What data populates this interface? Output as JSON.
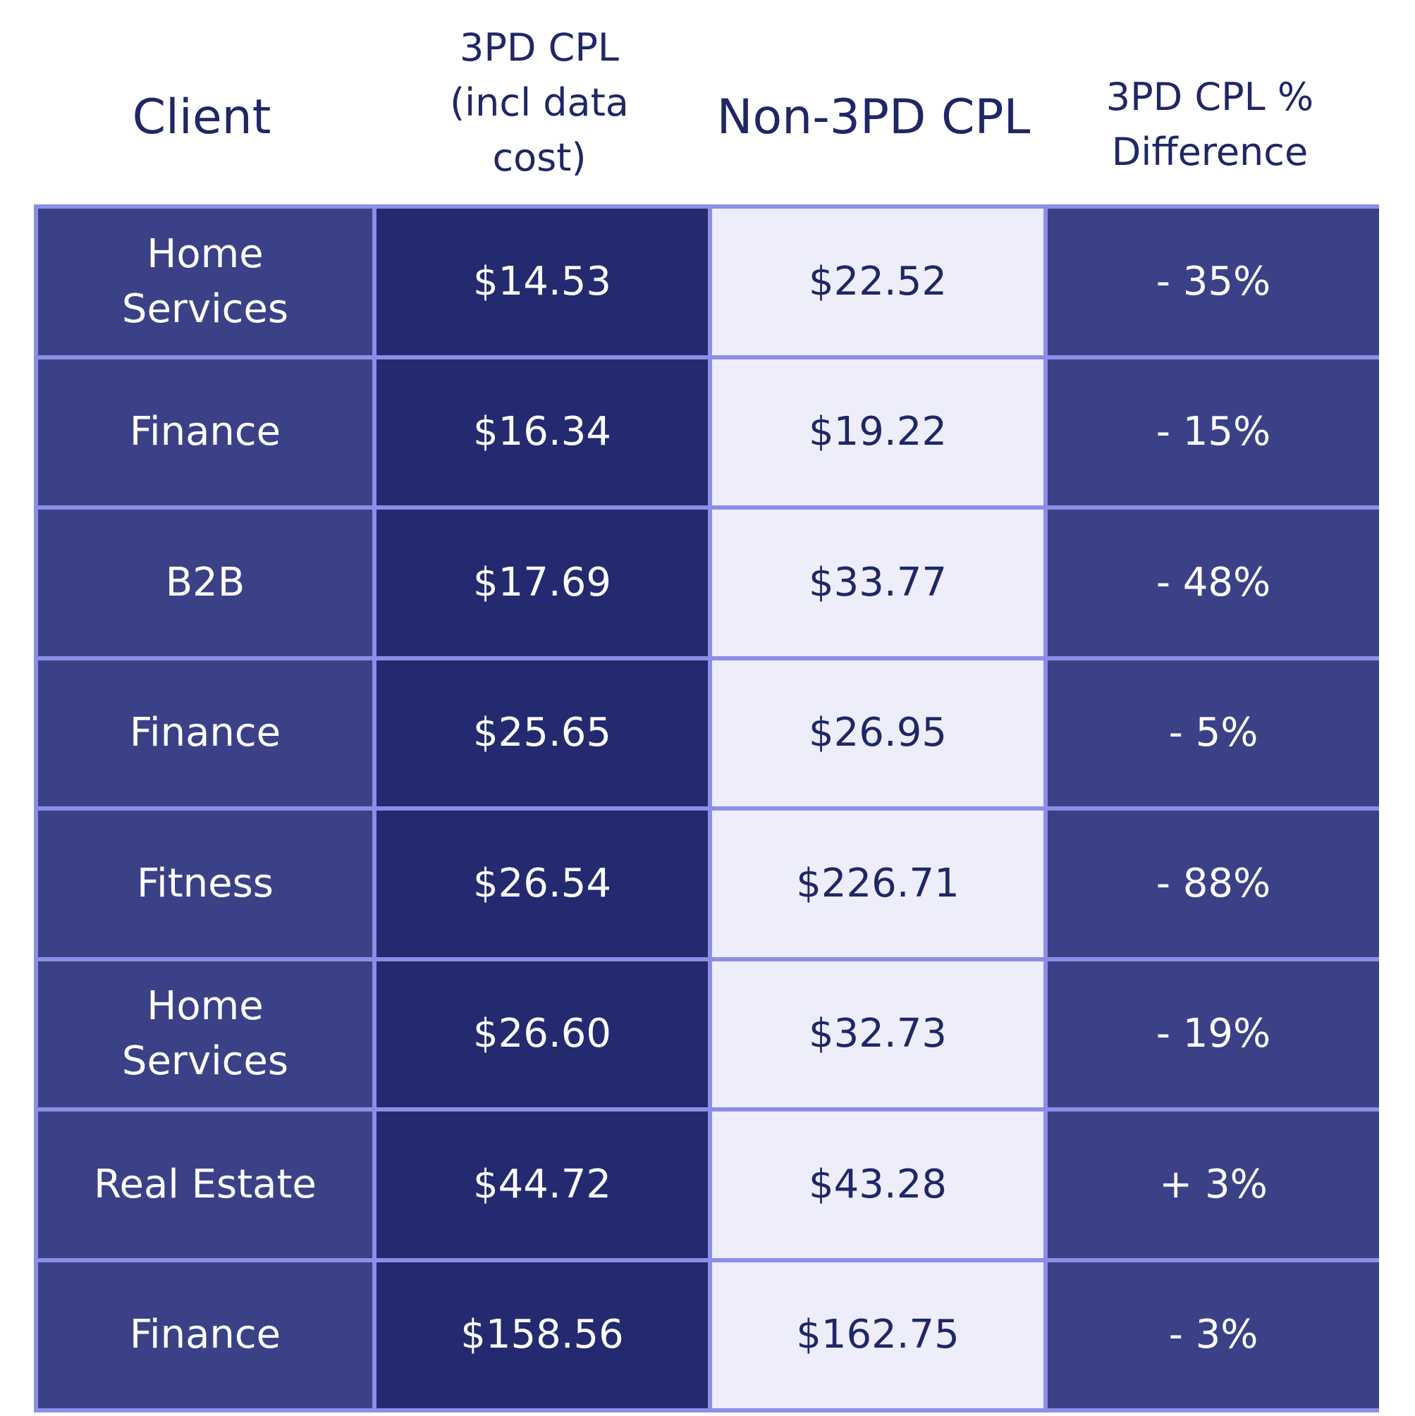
{
  "chart_data": {
    "type": "table",
    "columns": [
      "Client",
      "3PD CPL\n(incl data\ncost)",
      "Non-3PD CPL",
      "3PD CPL %\nDifference"
    ],
    "rows": [
      [
        "Home\nServices",
        "$14.53",
        "$22.52",
        "- 35%"
      ],
      [
        "Finance",
        "$16.34",
        "$19.22",
        "- 15%"
      ],
      [
        "B2B",
        "$17.69",
        "$33.77",
        "- 48%"
      ],
      [
        "Finance",
        "$25.65",
        "$26.95",
        "- 5%"
      ],
      [
        "Fitness",
        "$26.54",
        "$226.71",
        "- 88%"
      ],
      [
        "Home\nServices",
        "$26.60",
        "$32.73",
        "- 19%"
      ],
      [
        "Real Estate",
        "$44.72",
        "$43.28",
        "+ 3%"
      ],
      [
        "Finance",
        "$158.56",
        "$162.75",
        "- 3%"
      ]
    ],
    "colors": {
      "client_fill": "#3b4187",
      "3pd_fill": "#232a6f",
      "non_3pd_fill": "#eeeefb",
      "pct_fill": "#3b4187",
      "border": "#8c8ee6",
      "header_text": "#1f2766"
    }
  }
}
